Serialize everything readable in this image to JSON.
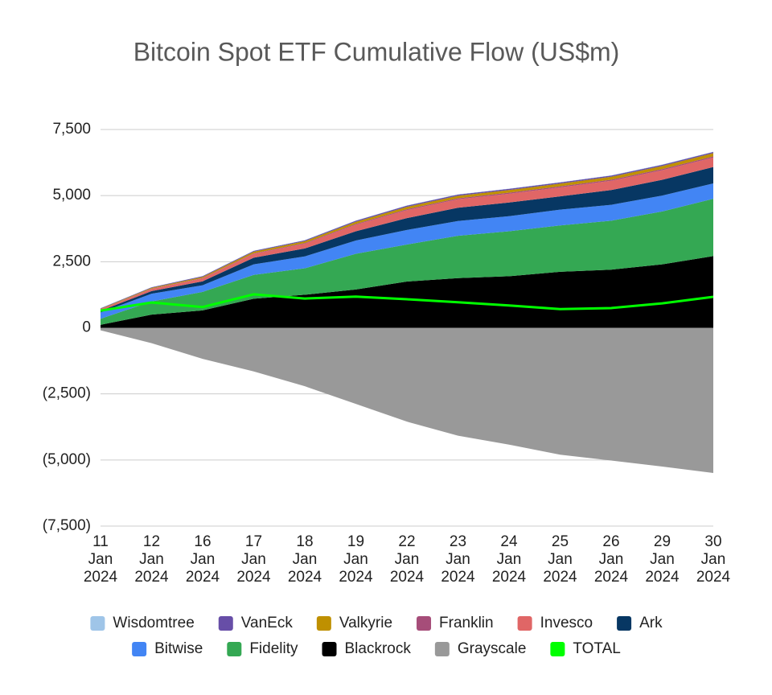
{
  "chart_data": {
    "type": "area",
    "stacked": true,
    "title": "Bitcoin Spot ETF Cumulative Flow (US$m)",
    "categories": [
      "11 Jan 2024",
      "12 Jan 2024",
      "16 Jan 2024",
      "17 Jan 2024",
      "18 Jan 2024",
      "19 Jan 2024",
      "22 Jan 2024",
      "23 Jan 2024",
      "24 Jan 2024",
      "25 Jan 2024",
      "26 Jan 2024",
      "29 Jan 2024",
      "30 Jan 2024"
    ],
    "series": [
      {
        "name": "Wisdomtree",
        "color": "#9fc5e8",
        "values": [
          5,
          5,
          6,
          7,
          8,
          8,
          9,
          9,
          9,
          9,
          10,
          10,
          10
        ]
      },
      {
        "name": "VanEck",
        "color": "#674ea7",
        "values": [
          20,
          25,
          30,
          30,
          35,
          40,
          45,
          45,
          45,
          45,
          45,
          45,
          45
        ]
      },
      {
        "name": "Valkyrie",
        "color": "#bf9000",
        "values": [
          20,
          30,
          40,
          60,
          70,
          80,
          90,
          95,
          100,
          105,
          110,
          115,
          120
        ]
      },
      {
        "name": "Franklin",
        "color": "#a64d79",
        "values": [
          5,
          10,
          15,
          20,
          25,
          30,
          35,
          38,
          40,
          40,
          42,
          45,
          45
        ]
      },
      {
        "name": "Invesco",
        "color": "#e06666",
        "values": [
          50,
          80,
          110,
          150,
          180,
          250,
          300,
          320,
          330,
          340,
          350,
          360,
          360
        ]
      },
      {
        "name": "Ark",
        "color": "#073763",
        "values": [
          65,
          100,
          150,
          250,
          300,
          350,
          450,
          500,
          520,
          500,
          560,
          600,
          620
        ]
      },
      {
        "name": "Bitwise",
        "color": "#4285f4",
        "values": [
          238,
          290,
          250,
          400,
          450,
          500,
          550,
          560,
          570,
          600,
          600,
          600,
          580
        ]
      },
      {
        "name": "Fidelity",
        "color": "#34a853",
        "values": [
          227,
          500,
          700,
          900,
          1000,
          1350,
          1400,
          1600,
          1700,
          1750,
          1850,
          2000,
          2170
        ]
      },
      {
        "name": "Blackrock",
        "color": "#000000",
        "values": [
          112,
          498,
          659,
          1100,
          1250,
          1450,
          1750,
          1880,
          1950,
          2120,
          2200,
          2400,
          2710
        ]
      },
      {
        "name": "Grayscale",
        "color": "#999999",
        "values": [
          -95,
          -580,
          -1175,
          -1650,
          -2210,
          -2880,
          -3550,
          -4080,
          -4420,
          -4800,
          -5020,
          -5250,
          -5490
        ]
      },
      {
        "name": "TOTAL",
        "color": "#00ff00",
        "type": "line",
        "values": [
          647,
          958,
          785,
          1267,
          1108,
          1178,
          1079,
          967,
          844,
          709,
          747,
          925,
          1170
        ]
      }
    ],
    "ylim": [
      -7500,
      7500
    ],
    "yticks": [
      {
        "value": -7500,
        "label": "(7,500)"
      },
      {
        "value": -5000,
        "label": "(5,000)"
      },
      {
        "value": -2500,
        "label": "(2,500)"
      },
      0,
      {
        "value": 2500,
        "label": "2,500"
      },
      {
        "value": 5000,
        "label": "5,000"
      },
      {
        "value": 7500,
        "label": "7,500"
      }
    ],
    "grid": true,
    "legend": "bottom"
  }
}
